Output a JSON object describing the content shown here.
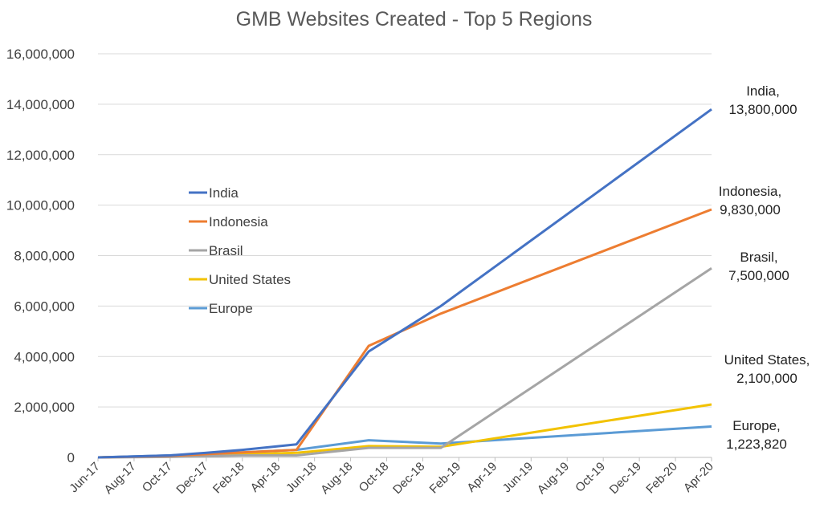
{
  "chart_data": {
    "type": "line",
    "title": "GMB Websites Created - Top 5 Regions",
    "xlabel": "",
    "ylabel": "",
    "x_ticks": [
      "Jun-17",
      "Aug-17",
      "Oct-17",
      "Dec-17",
      "Feb-18",
      "Apr-18",
      "Jun-18",
      "Aug-18",
      "Oct-18",
      "Dec-18",
      "Feb-19",
      "Apr-19",
      "Jun-19",
      "Aug-19",
      "Oct-19",
      "Dec-19",
      "Feb-20",
      "Apr-20"
    ],
    "y_ticks": [
      "0",
      "2,000,000",
      "4,000,000",
      "6,000,000",
      "8,000,000",
      "10,000,000",
      "12,000,000",
      "14,000,000",
      "16,000,000"
    ],
    "ylim": [
      0,
      16000000
    ],
    "grid": true,
    "legend_position": "left-center",
    "series": [
      {
        "name": "India",
        "color": "#4472C4",
        "points": [
          [
            "Jun-17",
            0
          ],
          [
            "Oct-17",
            80000
          ],
          [
            "Dec-17",
            180000
          ],
          [
            "Feb-18",
            300000
          ],
          [
            "May-18",
            520000
          ],
          [
            "Sep-18",
            4200000
          ],
          [
            "Jan-19",
            6000000
          ],
          [
            "Apr-20",
            13800000
          ]
        ],
        "label": "India,",
        "label_value": "13,800,000"
      },
      {
        "name": "Indonesia",
        "color": "#ED7D31",
        "points": [
          [
            "Jun-17",
            0
          ],
          [
            "Oct-17",
            60000
          ],
          [
            "Dec-17",
            130000
          ],
          [
            "Feb-18",
            200000
          ],
          [
            "May-18",
            300000
          ],
          [
            "Sep-18",
            4420000
          ],
          [
            "Jan-19",
            5700000
          ],
          [
            "Apr-20",
            9830000
          ]
        ],
        "label": "Indonesia,",
        "label_value": "9,830,000"
      },
      {
        "name": "Brasil",
        "color": "#A5A5A5",
        "points": [
          [
            "Jun-17",
            0
          ],
          [
            "Oct-17",
            20000
          ],
          [
            "Dec-17",
            50000
          ],
          [
            "Feb-18",
            80000
          ],
          [
            "May-18",
            80000
          ],
          [
            "Sep-18",
            380000
          ],
          [
            "Jan-19",
            380000
          ],
          [
            "Apr-20",
            7500000
          ]
        ],
        "label": "Brasil,",
        "label_value": "7,500,000"
      },
      {
        "name": "United States",
        "color": "#F2C200",
        "points": [
          [
            "Jun-17",
            0
          ],
          [
            "Oct-17",
            40000
          ],
          [
            "Dec-17",
            70000
          ],
          [
            "Feb-18",
            120000
          ],
          [
            "May-18",
            180000
          ],
          [
            "Sep-18",
            450000
          ],
          [
            "Jan-19",
            420000
          ],
          [
            "Apr-20",
            2100000
          ]
        ],
        "label": "United States,",
        "label_value": "2,100,000"
      },
      {
        "name": "Europe",
        "color": "#5B9BD5",
        "points": [
          [
            "Jun-17",
            0
          ],
          [
            "Oct-17",
            80000
          ],
          [
            "Dec-17",
            140000
          ],
          [
            "Feb-18",
            200000
          ],
          [
            "May-18",
            300000
          ],
          [
            "Sep-18",
            680000
          ],
          [
            "Jan-19",
            550000
          ],
          [
            "Apr-20",
            1223820
          ]
        ],
        "label": "Europe,",
        "label_value": "1,223,820"
      }
    ]
  }
}
